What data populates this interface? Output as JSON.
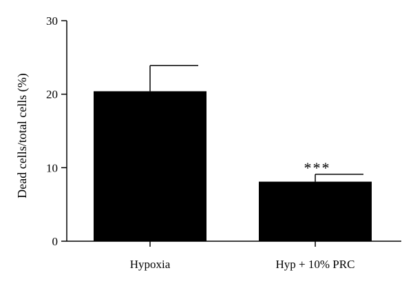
{
  "chart_data": {
    "type": "bar",
    "title": "",
    "xlabel": "",
    "ylabel": "Dead cells/total cells (%)",
    "ylim": [
      0,
      30
    ],
    "yticks": [
      0,
      10,
      20,
      30
    ],
    "categories": [
      "Hypoxia",
      "Hyp + 10% PRC"
    ],
    "values": [
      20.4,
      8.1
    ],
    "errors": [
      3.5,
      1.0
    ],
    "annotations": [
      "",
      "***"
    ],
    "grid": false,
    "bar_color": "#000000"
  }
}
